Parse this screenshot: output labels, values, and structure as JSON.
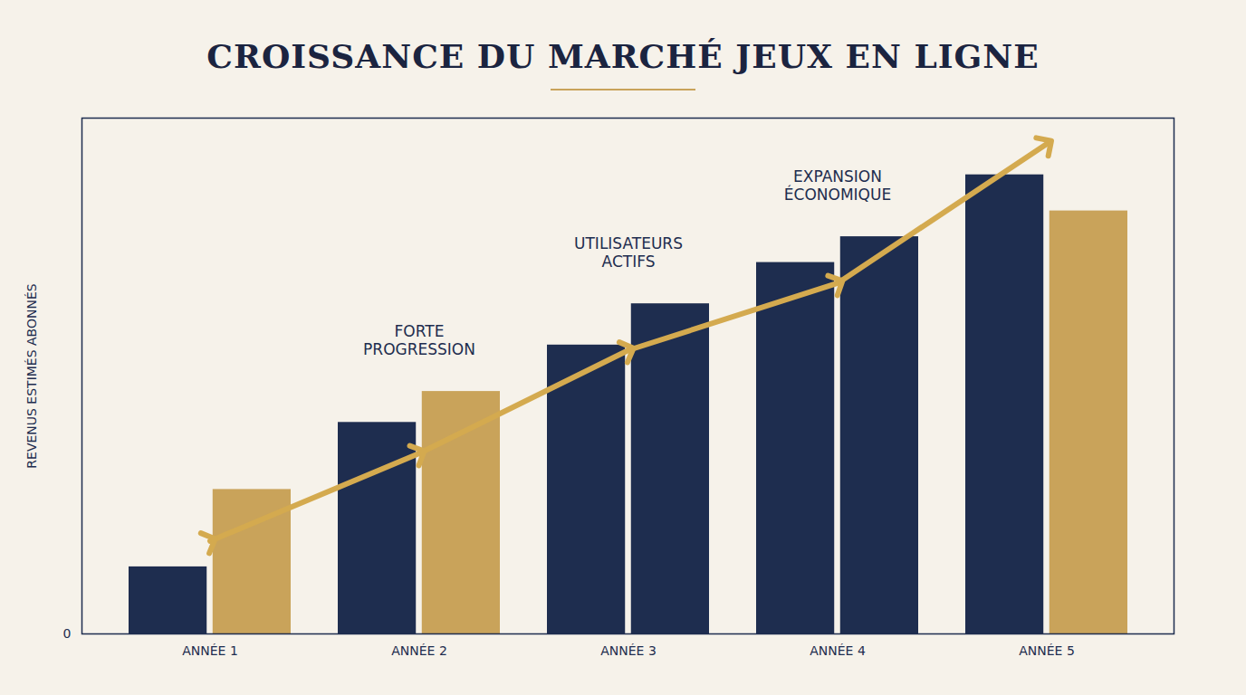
{
  "chart_data": {
    "type": "bar",
    "title": "CROISSANCE DU MARCHÉ JEUX EN LIGNE",
    "ylabel": "REVENUS ESTIMÉS ABONNÉS",
    "categories": [
      "ANNÉE 1",
      "ANNÉE 2",
      "ANNÉE 3",
      "ANNÉE 4",
      "ANNÉE 5"
    ],
    "series": [
      {
        "type": "bar",
        "color": "#1e2d4f",
        "values": [
          13,
          41,
          56,
          72,
          89
        ]
      },
      {
        "type": "bar",
        "colors": [
          "#c9a35a",
          "#c9a35a",
          "#1e2d4f",
          "#1e2d4f",
          "#c9a35a"
        ],
        "values": [
          28,
          47,
          64,
          77,
          82
        ]
      },
      {
        "type": "line",
        "color": "#d4aa4f",
        "marker": "arrow",
        "values": [
          18,
          35,
          55,
          68,
          95
        ]
      }
    ],
    "ylim": [
      0,
      100
    ],
    "yticks": [
      0
    ],
    "grid": false,
    "annotations": [
      {
        "text": "FORTE PROGRESSION",
        "x": "ANNÉE 2"
      },
      {
        "text": "UTILISATEURS ACTIFS",
        "x": "ANNÉE 3"
      },
      {
        "text": "EXPANSION ÉCONOMIQUE",
        "x": "ANNÉE 4"
      }
    ]
  }
}
